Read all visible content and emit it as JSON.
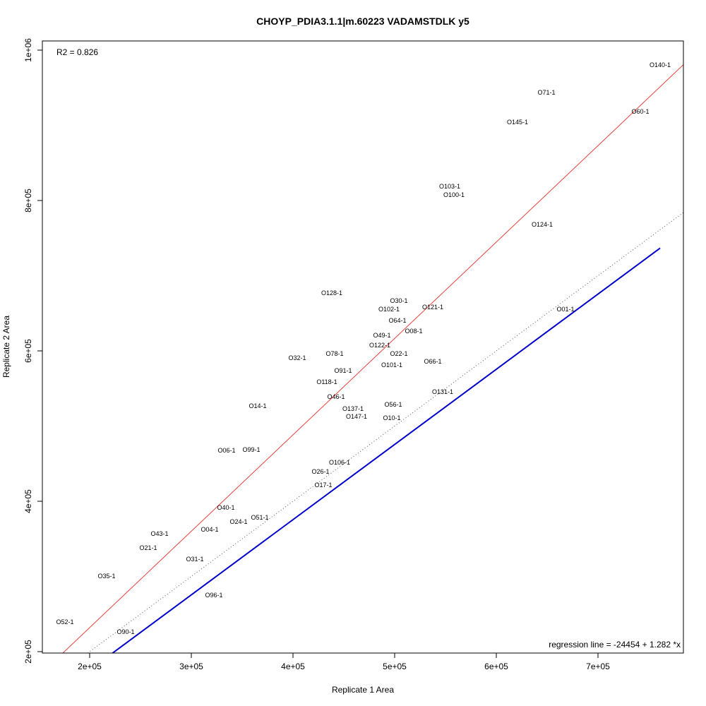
{
  "chart_data": {
    "type": "scatter",
    "title": "CHOYP_PDIA3.1.1|m.60223 VADAMSTDLK y5",
    "xlabel": "Replicate 1 Area",
    "ylabel": "Replicate 2 Area",
    "xlim": [
      153472,
      784028
    ],
    "ylim": [
      198122,
      1012207
    ],
    "xticks": [
      200000,
      300000,
      400000,
      500000,
      600000,
      700000
    ],
    "xtick_labels": [
      "2e+05",
      "3e+05",
      "4e+05",
      "5e+05",
      "6e+05",
      "7e+05"
    ],
    "yticks": [
      200000,
      400000,
      600000,
      800000,
      1000000
    ],
    "ytick_labels": [
      "2e+05",
      "4e+05",
      "6e+05",
      "8e+05",
      "1e+06"
    ],
    "r2_label": "R2 = 0.826",
    "regression_label": "regression line = -24454 + 1.282 *x",
    "lines": [
      {
        "name": "regression",
        "intercept": -24454,
        "slope": 1.282,
        "color": "#e8403a",
        "style": "solid"
      },
      {
        "name": "identity",
        "intercept": 0,
        "slope": 1,
        "color": "#555555",
        "style": "dotted"
      },
      {
        "name": "offset",
        "intercept": -24454,
        "slope": 1,
        "color": "#0000cc",
        "style": "solid",
        "x_range": [
          221528,
          761111
        ]
      }
    ],
    "points": [
      {
        "label": "O140-1",
        "x": 761111,
        "y": 980282
      },
      {
        "label": "O71-1",
        "x": 649306,
        "y": 943662
      },
      {
        "label": "O60-1",
        "x": 741667,
        "y": 918310
      },
      {
        "label": "O145-1",
        "x": 620833,
        "y": 904225
      },
      {
        "label": "O103-1",
        "x": 554167,
        "y": 818779
      },
      {
        "label": "O100-1",
        "x": 558333,
        "y": 816901
      },
      {
        "label": "O124-1",
        "x": 645139,
        "y": 768075
      },
      {
        "label": "O128-1",
        "x": 438194,
        "y": 676995
      },
      {
        "label": "O30-1",
        "x": 504167,
        "y": 666667
      },
      {
        "label": "O121-1",
        "x": 537500,
        "y": 658216
      },
      {
        "label": "O01-1",
        "x": 668056,
        "y": 655399
      },
      {
        "label": "O102-1",
        "x": 494444,
        "y": 655399
      },
      {
        "label": "O64-1",
        "x": 502778,
        "y": 649765
      },
      {
        "label": "O49-1",
        "x": 487500,
        "y": 630047
      },
      {
        "label": "O122-1",
        "x": 485417,
        "y": 626291
      },
      {
        "label": "O08-1",
        "x": 518750,
        "y": 626291
      },
      {
        "label": "O22-1",
        "x": 504167,
        "y": 615023
      },
      {
        "label": "O78-1",
        "x": 440972,
        "y": 596244
      },
      {
        "label": "O101-1",
        "x": 497222,
        "y": 600000
      },
      {
        "label": "O32-1",
        "x": 404167,
        "y": 590610
      },
      {
        "label": "O66-1",
        "x": 537500,
        "y": 585915
      },
      {
        "label": "O91-1",
        "x": 449306,
        "y": 573709
      },
      {
        "label": "O118-1",
        "x": 433333,
        "y": 568075
      },
      {
        "label": "O131-1",
        "x": 547222,
        "y": 545540
      },
      {
        "label": "O46-1",
        "x": 442361,
        "y": 538967
      },
      {
        "label": "O14-1",
        "x": 365278,
        "y": 526761
      },
      {
        "label": "O56-1",
        "x": 498611,
        "y": 528638
      },
      {
        "label": "O137-1",
        "x": 459028,
        "y": 523005
      },
      {
        "label": "O147-1",
        "x": 462500,
        "y": 522066
      },
      {
        "label": "O10-1",
        "x": 497222,
        "y": 510798
      },
      {
        "label": "O06-1",
        "x": 334722,
        "y": 467606
      },
      {
        "label": "O99-1",
        "x": 359028,
        "y": 468545
      },
      {
        "label": "O26-1",
        "x": 427083,
        "y": 439437
      },
      {
        "label": "O106-1",
        "x": 445833,
        "y": 442254
      },
      {
        "label": "O17-1",
        "x": 429861,
        "y": 421596
      },
      {
        "label": "O40-1",
        "x": 334028,
        "y": 391549
      },
      {
        "label": "O24-1",
        "x": 346528,
        "y": 382160
      },
      {
        "label": "O51-1",
        "x": 367361,
        "y": 378404
      },
      {
        "label": "O04-1",
        "x": 318056,
        "y": 362441
      },
      {
        "label": "O43-1",
        "x": 268750,
        "y": 356808
      },
      {
        "label": "O21-1",
        "x": 257639,
        "y": 338028
      },
      {
        "label": "O31-1",
        "x": 303472,
        "y": 323005
      },
      {
        "label": "O35-1",
        "x": 216667,
        "y": 300469
      },
      {
        "label": "O96-1",
        "x": 322222,
        "y": 275117
      },
      {
        "label": "O52-1",
        "x": 175694,
        "y": 239437
      },
      {
        "label": "O90-1",
        "x": 235417,
        "y": 226291
      }
    ]
  }
}
